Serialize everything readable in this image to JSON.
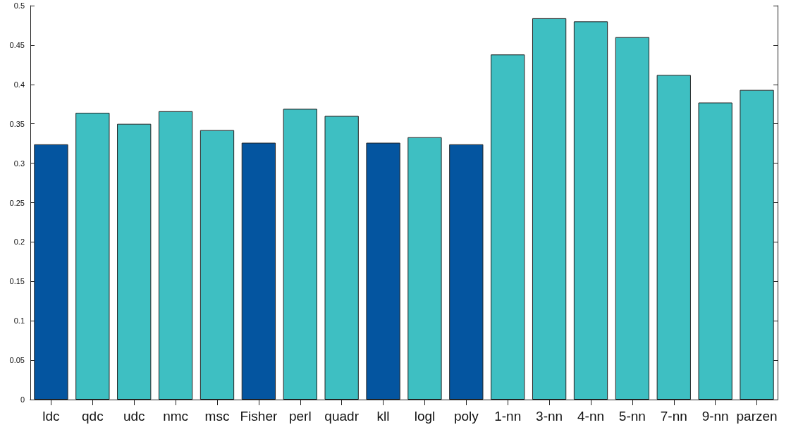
{
  "chart_data": {
    "type": "bar",
    "categories": [
      "ldc",
      "qdc",
      "udc",
      "nmc",
      "msc",
      "Fisher",
      "perl",
      "quadr",
      "kll",
      "logl",
      "poly",
      "1-nn",
      "3-nn",
      "4-nn",
      "5-nn",
      "7-nn",
      "9-nn",
      "parzen"
    ],
    "values": [
      0.324,
      0.364,
      0.35,
      0.366,
      0.342,
      0.326,
      0.369,
      0.36,
      0.326,
      0.333,
      0.324,
      0.438,
      0.484,
      0.48,
      0.46,
      0.412,
      0.377,
      0.393
    ],
    "colors": [
      "#0455a0",
      "#3ebfc2",
      "#3ebfc2",
      "#3ebfc2",
      "#3ebfc2",
      "#0455a0",
      "#3ebfc2",
      "#3ebfc2",
      "#0455a0",
      "#3ebfc2",
      "#0455a0",
      "#3ebfc2",
      "#3ebfc2",
      "#3ebfc2",
      "#3ebfc2",
      "#3ebfc2",
      "#3ebfc2",
      "#3ebfc2"
    ],
    "ylim": [
      0,
      0.5
    ],
    "yticks": [
      0,
      0.05,
      0.1,
      0.15,
      0.2,
      0.25,
      0.3,
      0.35,
      0.4,
      0.45,
      0.5
    ],
    "grid": false
  }
}
